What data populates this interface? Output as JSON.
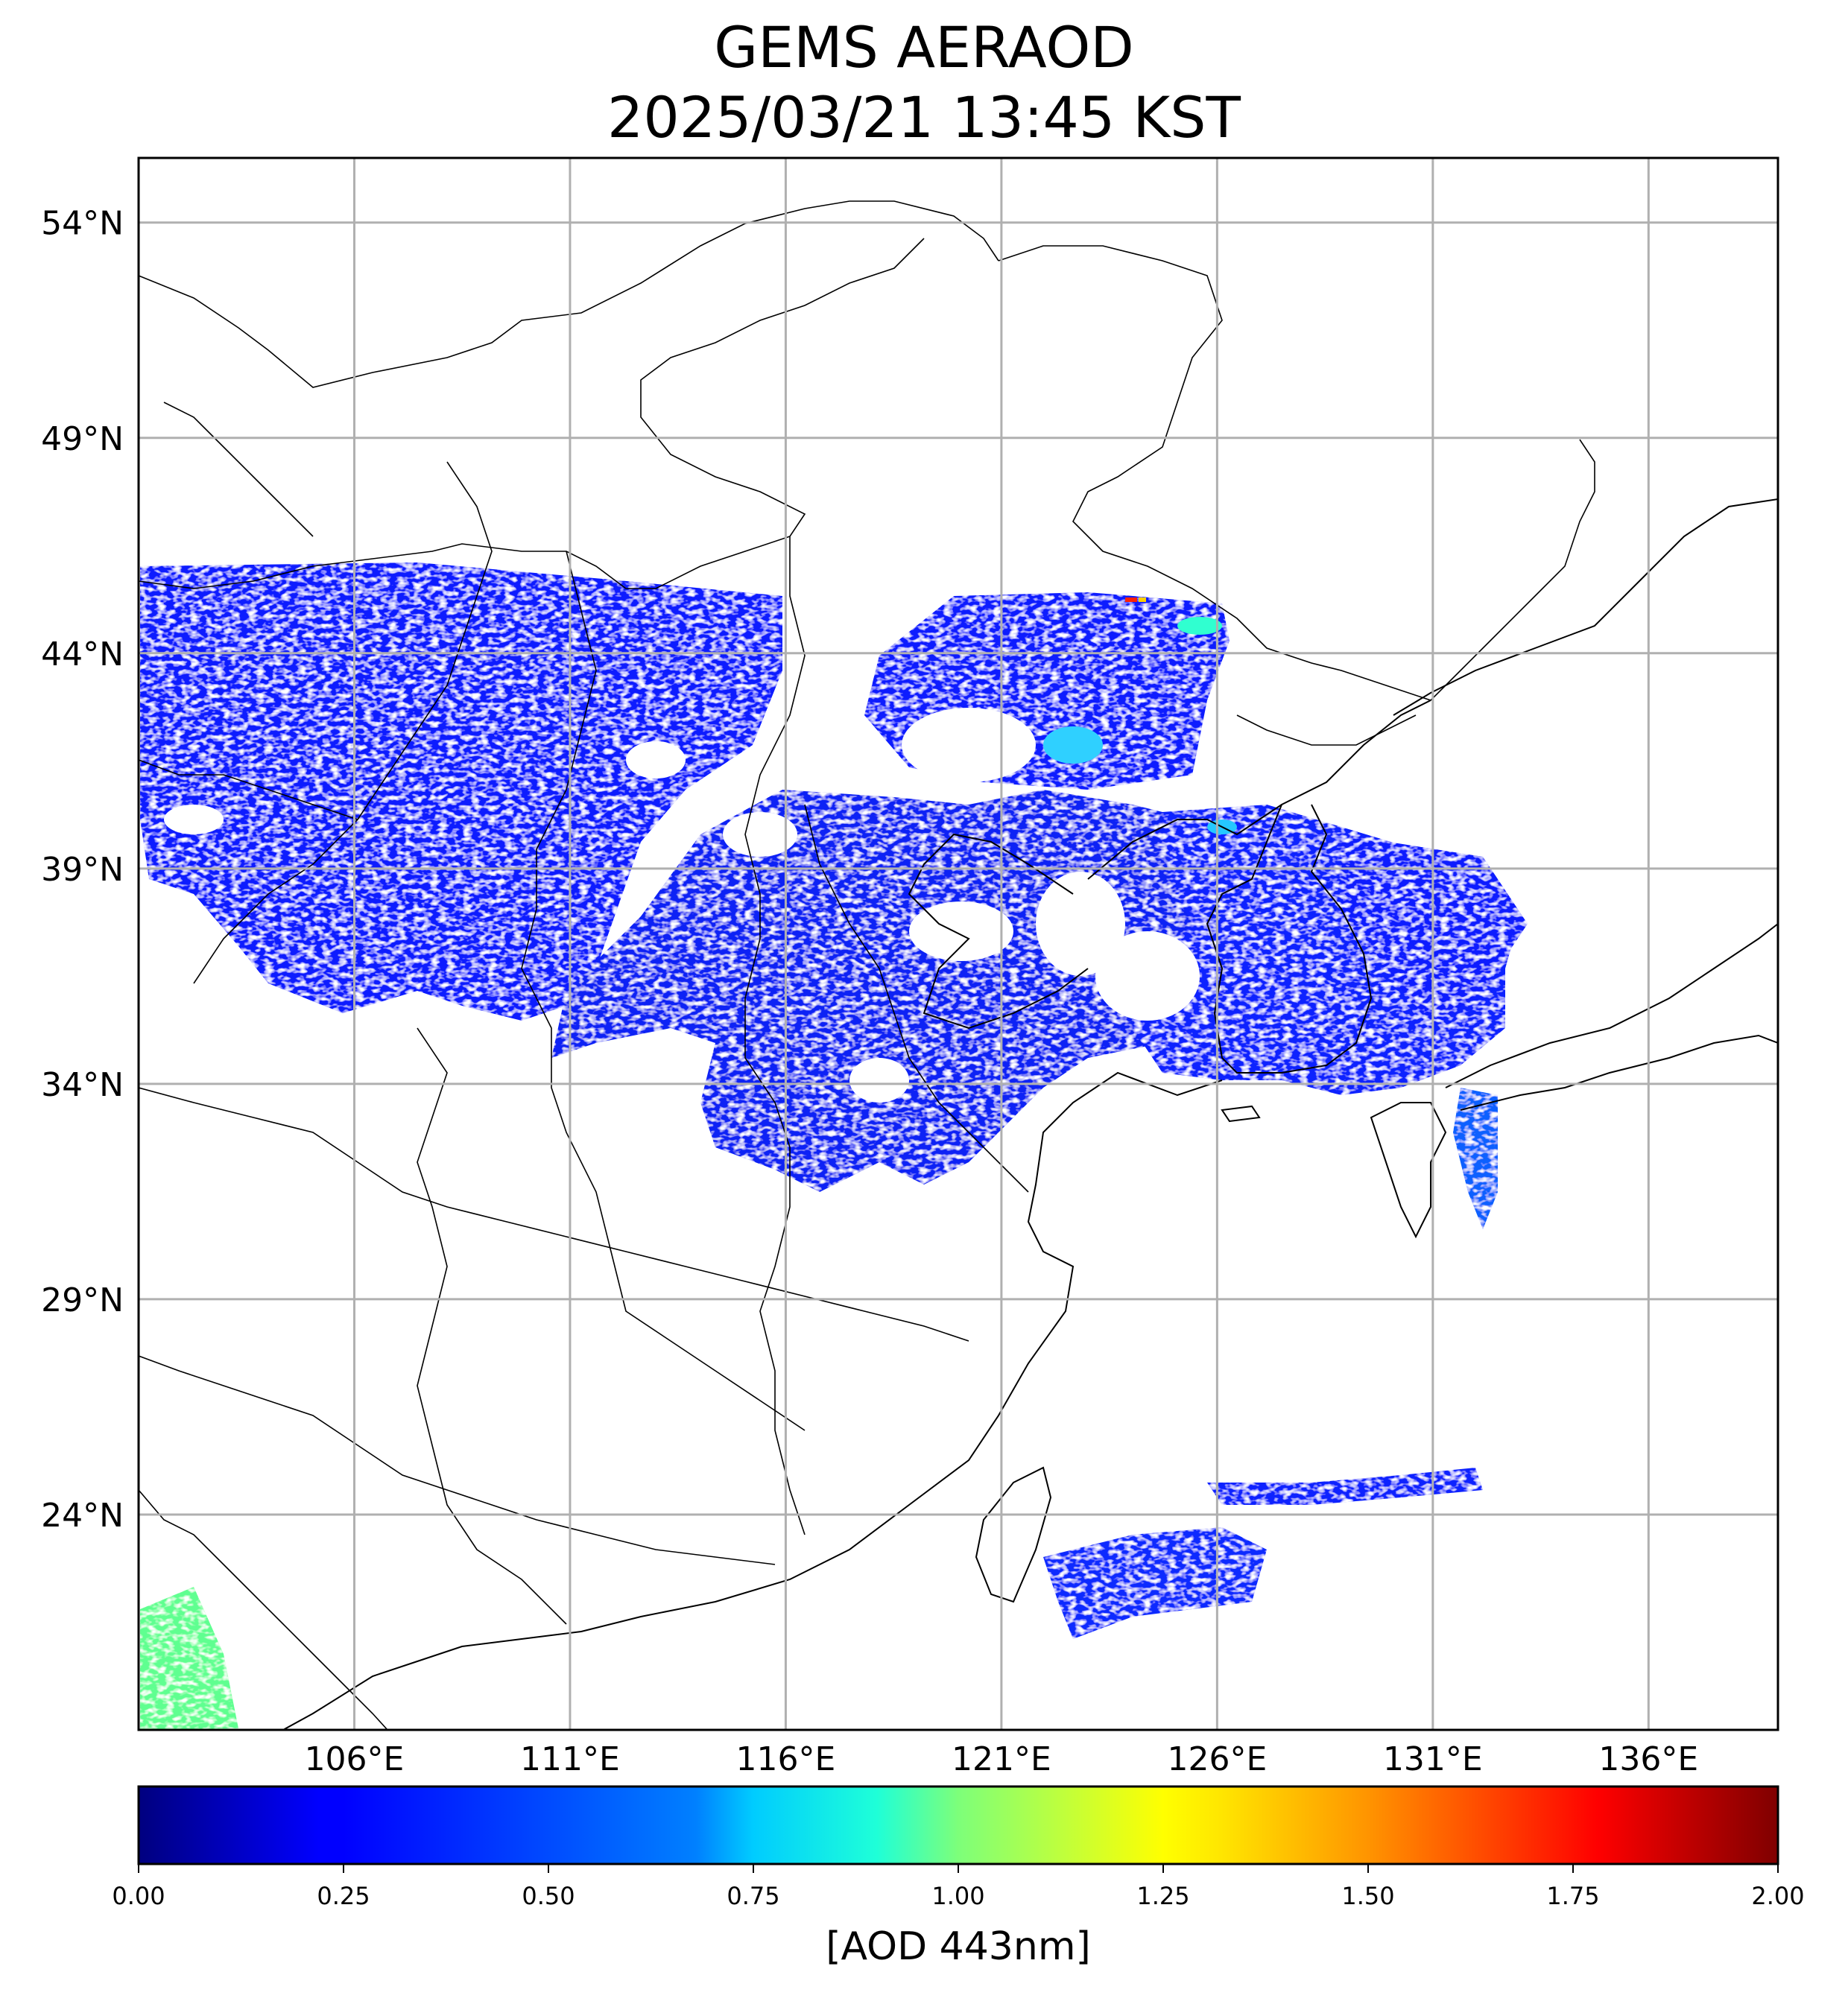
{
  "title": {
    "line1": "GEMS AERAOD",
    "line2": "2025/03/21 13:45 KST"
  },
  "map": {
    "lon_range": [
      101,
      139
    ],
    "lat_range": [
      19,
      55.5
    ],
    "lat_ticks": [
      {
        "value": 54,
        "label": "54°N"
      },
      {
        "value": 49,
        "label": "49°N"
      },
      {
        "value": 44,
        "label": "44°N"
      },
      {
        "value": 39,
        "label": "39°N"
      },
      {
        "value": 34,
        "label": "34°N"
      },
      {
        "value": 29,
        "label": "29°N"
      },
      {
        "value": 24,
        "label": "24°N"
      }
    ],
    "lon_ticks": [
      {
        "value": 106,
        "label": "106°E"
      },
      {
        "value": 111,
        "label": "111°E"
      },
      {
        "value": 116,
        "label": "116°E"
      },
      {
        "value": 121,
        "label": "121°E"
      },
      {
        "value": 126,
        "label": "126°E"
      },
      {
        "value": 131,
        "label": "131°E"
      },
      {
        "value": 136,
        "label": "136°E"
      }
    ],
    "grid": true
  },
  "colorbar": {
    "label": "[AOD 443nm]",
    "range": [
      0,
      2
    ],
    "colormap": "jet",
    "ticks": [
      "0.00",
      "0.25",
      "0.50",
      "0.75",
      "1.00",
      "1.25",
      "1.50",
      "1.75",
      "2.00"
    ]
  }
}
